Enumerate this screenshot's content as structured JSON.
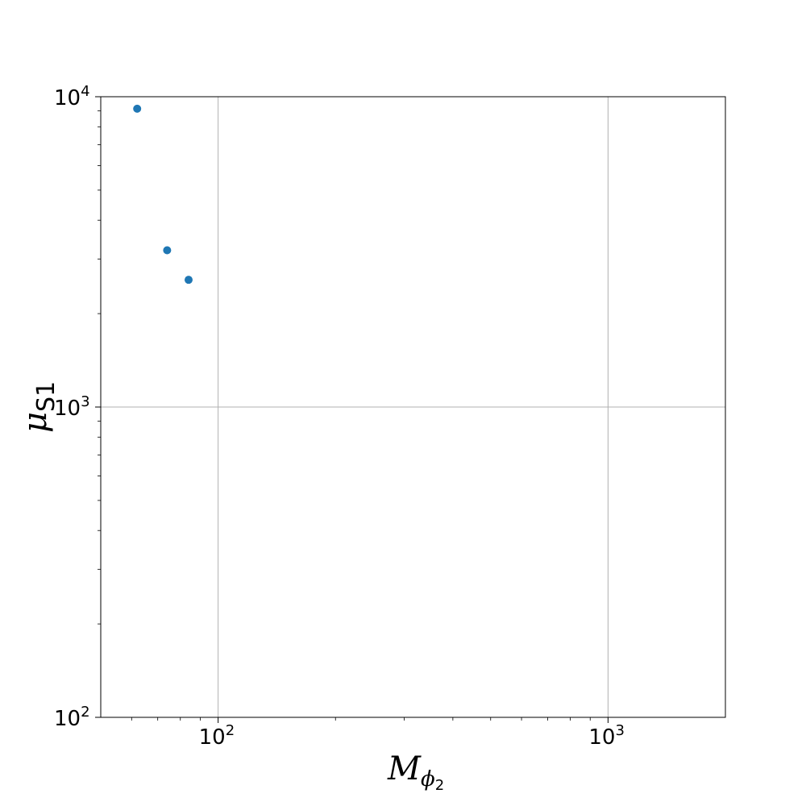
{
  "chart_data": {
    "type": "scatter",
    "title": "",
    "xlabel": {
      "base": "M",
      "sub": "ϕ",
      "subsub": "2"
    },
    "ylabel": {
      "base": "μ",
      "sub": "S1"
    },
    "xscale": "log",
    "yscale": "log",
    "xlim": [
      50,
      2000
    ],
    "ylim": [
      100,
      10000
    ],
    "grid": true,
    "marker_color": "#1f77b4",
    "x_ticks": [
      {
        "value": 100,
        "base": "10",
        "exp": "2"
      },
      {
        "value": 1000,
        "base": "10",
        "exp": "3"
      }
    ],
    "y_ticks": [
      {
        "value": 100,
        "base": "10",
        "exp": "2"
      },
      {
        "value": 1000,
        "base": "10",
        "exp": "3"
      },
      {
        "value": 10000,
        "base": "10",
        "exp": "4"
      }
    ],
    "series": [
      {
        "name": "points",
        "points": [
          {
            "x": 62,
            "y": 9150
          },
          {
            "x": 74,
            "y": 3200
          },
          {
            "x": 84,
            "y": 2570
          }
        ]
      }
    ]
  }
}
